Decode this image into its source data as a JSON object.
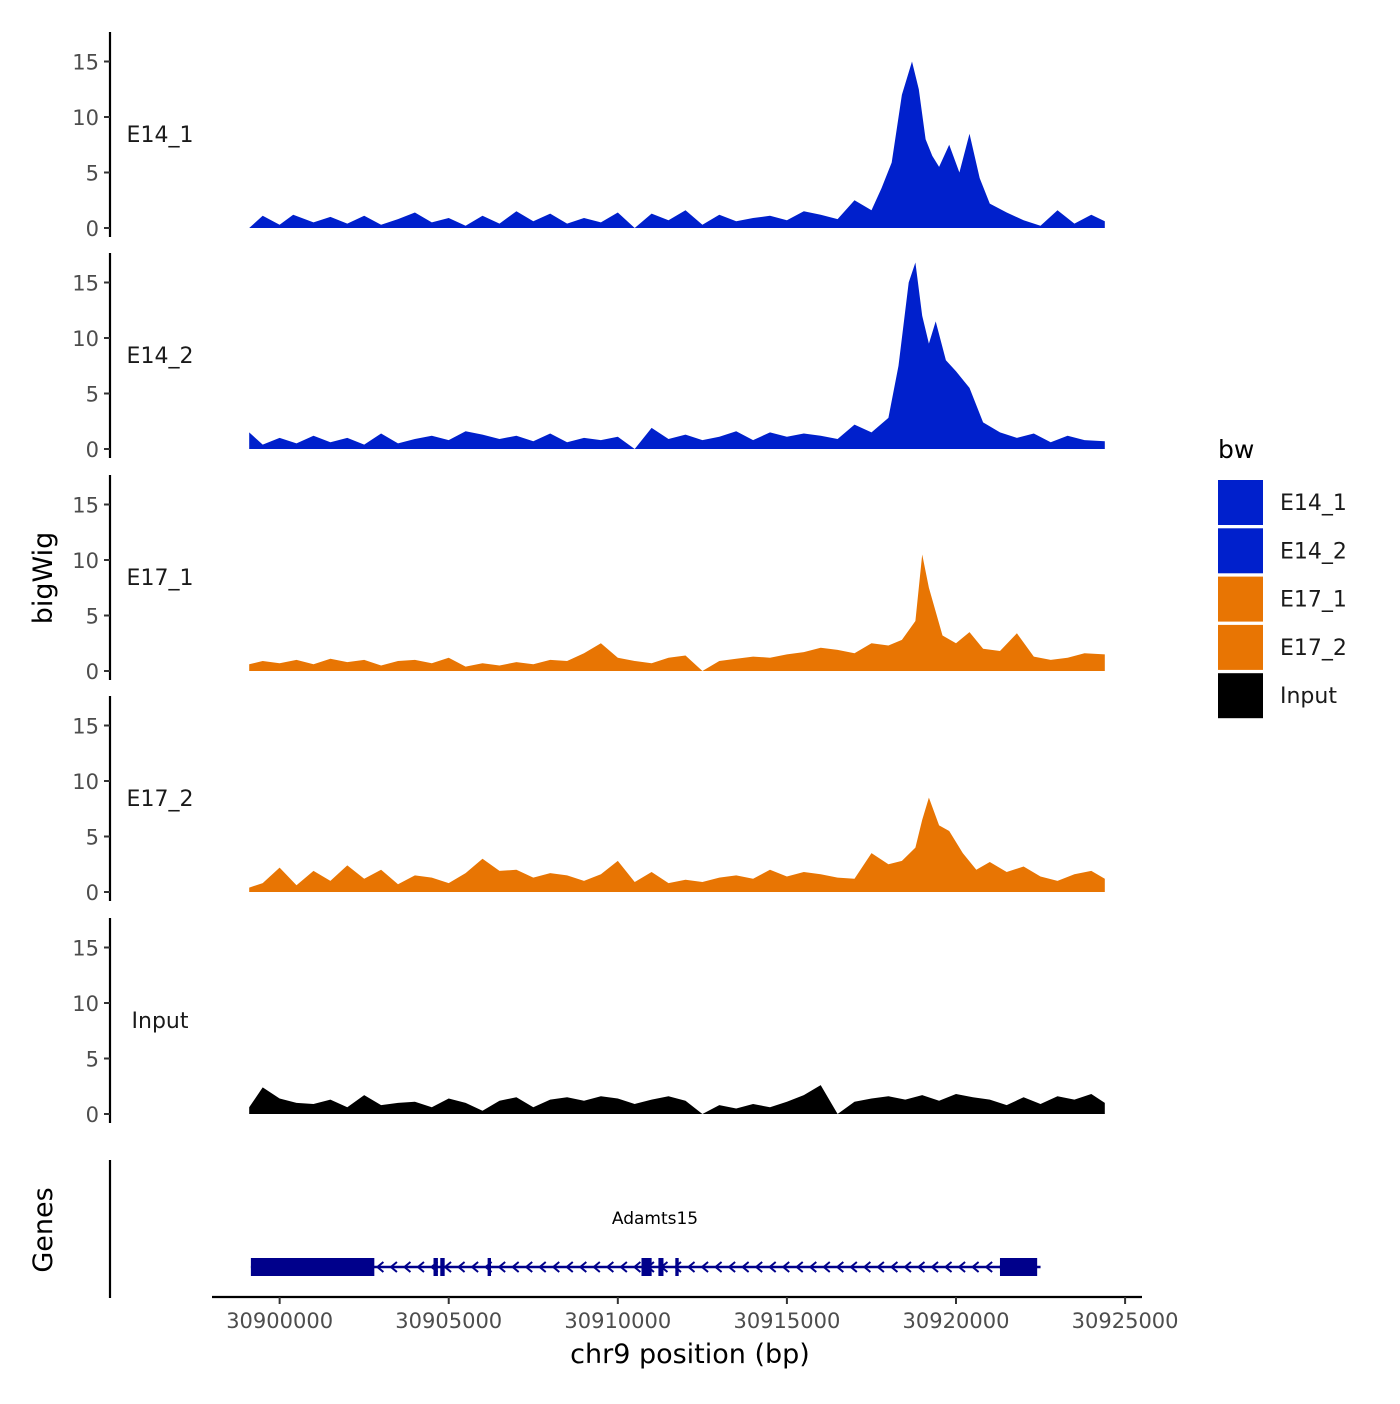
{
  "chart_data": {
    "type": "area",
    "title": "",
    "ylabel": "bigWig",
    "xlabel": "chr9 position (bp)",
    "xlim": [
      30898000,
      30925500
    ],
    "ylim": [
      0,
      17
    ],
    "yticks": [
      0,
      5,
      10,
      15
    ],
    "xticks": [
      30900000,
      30905000,
      30910000,
      30915000,
      30920000,
      30925000
    ],
    "xtick_labels": [
      "30900000",
      "30905000",
      "30910000",
      "30915000",
      "30920000",
      "30925000"
    ],
    "legend": {
      "title": "bw",
      "position": "right",
      "entries": [
        {
          "name": "E14_1",
          "color": "#0020CC"
        },
        {
          "name": "E14_2",
          "color": "#0020CC"
        },
        {
          "name": "E17_1",
          "color": "#E87503"
        },
        {
          "name": "E17_2",
          "color": "#E87503"
        },
        {
          "name": "Input",
          "color": "#000000"
        }
      ]
    },
    "series": [
      {
        "name": "E14_1",
        "color": "#0020CC",
        "x": [
          30899100,
          30899500,
          30900000,
          30900400,
          30901000,
          30901500,
          30902000,
          30902500,
          30903000,
          30903500,
          30904000,
          30904500,
          30905000,
          30905500,
          30906000,
          30906500,
          30907000,
          30907500,
          30908000,
          30908500,
          30909000,
          30909500,
          30910000,
          30910500,
          30911000,
          30911500,
          30912000,
          30912500,
          30913000,
          30913500,
          30914000,
          30914500,
          30915000,
          30915500,
          30916000,
          30916500,
          30917000,
          30917500,
          30917800,
          30918100,
          30918400,
          30918700,
          30918900,
          30919100,
          30919300,
          30919500,
          30919800,
          30920100,
          30920400,
          30920700,
          30921000,
          30921500,
          30922000,
          30922500,
          30923000,
          30923500,
          30924000,
          30924400
        ],
        "values": [
          0,
          1.1,
          0.3,
          1.2,
          0.5,
          1.0,
          0.4,
          1.1,
          0.3,
          0.8,
          1.4,
          0.5,
          0.9,
          0.2,
          1.1,
          0.4,
          1.5,
          0.6,
          1.3,
          0.4,
          0.9,
          0.5,
          1.4,
          0.0,
          1.3,
          0.7,
          1.6,
          0.3,
          1.2,
          0.6,
          0.9,
          1.1,
          0.7,
          1.5,
          1.2,
          0.8,
          2.5,
          1.6,
          3.6,
          5.9,
          12.0,
          15.0,
          12.5,
          8.0,
          6.5,
          5.5,
          7.5,
          5.0,
          8.5,
          4.5,
          2.2,
          1.4,
          0.7,
          0.2,
          1.6,
          0.4,
          1.2,
          0.6
        ]
      },
      {
        "name": "E14_2",
        "color": "#0020CC",
        "x": [
          30899100,
          30899500,
          30900000,
          30900500,
          30901000,
          30901500,
          30902000,
          30902500,
          30903000,
          30903500,
          30904000,
          30904500,
          30905000,
          30905500,
          30906000,
          30906500,
          30907000,
          30907500,
          30908000,
          30908500,
          30909000,
          30909500,
          30910000,
          30910500,
          30911000,
          30911500,
          30912000,
          30912500,
          30913000,
          30913500,
          30914000,
          30914500,
          30915000,
          30915500,
          30916000,
          30916500,
          30917000,
          30917500,
          30918000,
          30918300,
          30918600,
          30918800,
          30919000,
          30919200,
          30919400,
          30919700,
          30920000,
          30920400,
          30920800,
          30921300,
          30921800,
          30922300,
          30922800,
          30923300,
          30923800,
          30924400
        ],
        "values": [
          1.5,
          0.4,
          1.0,
          0.5,
          1.2,
          0.6,
          1.0,
          0.4,
          1.4,
          0.5,
          0.9,
          1.2,
          0.8,
          1.6,
          1.3,
          0.9,
          1.2,
          0.7,
          1.4,
          0.6,
          1.0,
          0.8,
          1.1,
          0.0,
          1.9,
          0.9,
          1.3,
          0.8,
          1.1,
          1.6,
          0.8,
          1.5,
          1.1,
          1.4,
          1.2,
          0.9,
          2.2,
          1.5,
          2.8,
          7.5,
          15.0,
          16.8,
          12.0,
          9.5,
          11.5,
          8.0,
          7.0,
          5.5,
          2.4,
          1.5,
          1.0,
          1.4,
          0.6,
          1.2,
          0.8,
          0.7
        ]
      },
      {
        "name": "E17_1",
        "color": "#E87503",
        "x": [
          30899100,
          30899500,
          30900000,
          30900500,
          30901000,
          30901500,
          30902000,
          30902500,
          30903000,
          30903500,
          30904000,
          30904500,
          30905000,
          30905500,
          30906000,
          30906500,
          30907000,
          30907500,
          30908000,
          30908500,
          30909000,
          30909500,
          30910000,
          30910500,
          30911000,
          30911500,
          30912000,
          30912500,
          30913000,
          30913500,
          30914000,
          30914500,
          30915000,
          30915500,
          30916000,
          30916500,
          30917000,
          30917500,
          30918000,
          30918400,
          30918800,
          30919000,
          30919200,
          30919600,
          30920000,
          30920400,
          30920800,
          30921300,
          30921800,
          30922300,
          30922800,
          30923300,
          30923800,
          30924400
        ],
        "values": [
          0.6,
          0.9,
          0.7,
          1.0,
          0.6,
          1.1,
          0.8,
          1.0,
          0.5,
          0.9,
          1.0,
          0.7,
          1.2,
          0.4,
          0.7,
          0.5,
          0.8,
          0.6,
          1.0,
          0.9,
          1.6,
          2.5,
          1.2,
          0.9,
          0.7,
          1.2,
          1.4,
          0.0,
          0.9,
          1.1,
          1.3,
          1.2,
          1.5,
          1.7,
          2.1,
          1.9,
          1.6,
          2.5,
          2.3,
          2.8,
          4.5,
          10.5,
          7.5,
          3.2,
          2.5,
          3.5,
          2.0,
          1.8,
          3.4,
          1.3,
          1.0,
          1.2,
          1.6,
          1.5
        ]
      },
      {
        "name": "E17_2",
        "color": "#E87503",
        "x": [
          30899100,
          30899500,
          30900000,
          30900500,
          30901000,
          30901500,
          30902000,
          30902500,
          30903000,
          30903500,
          30904000,
          30904500,
          30905000,
          30905500,
          30906000,
          30906500,
          30907000,
          30907500,
          30908000,
          30908500,
          30909000,
          30909500,
          30910000,
          30910500,
          30911000,
          30911500,
          30912000,
          30912500,
          30913000,
          30913500,
          30914000,
          30914500,
          30915000,
          30915500,
          30916000,
          30916500,
          30917000,
          30917500,
          30918000,
          30918400,
          30918800,
          30919000,
          30919200,
          30919500,
          30919800,
          30920200,
          30920600,
          30921000,
          30921500,
          30922000,
          30922500,
          30923000,
          30923500,
          30924000,
          30924400
        ],
        "values": [
          0.4,
          0.8,
          2.2,
          0.6,
          1.9,
          1.0,
          2.4,
          1.2,
          2.0,
          0.7,
          1.5,
          1.3,
          0.8,
          1.7,
          3.0,
          1.9,
          2.0,
          1.3,
          1.7,
          1.5,
          1.0,
          1.6,
          2.8,
          0.9,
          1.8,
          0.8,
          1.1,
          0.9,
          1.3,
          1.5,
          1.2,
          2.0,
          1.4,
          1.8,
          1.6,
          1.3,
          1.2,
          3.5,
          2.5,
          2.8,
          4.0,
          6.5,
          8.5,
          6.0,
          5.5,
          3.5,
          2.0,
          2.7,
          1.8,
          2.3,
          1.4,
          1.0,
          1.6,
          1.9,
          1.2
        ]
      },
      {
        "name": "Input",
        "color": "#000000",
        "x": [
          30899100,
          30899500,
          30900000,
          30900500,
          30901000,
          30901500,
          30902000,
          30902500,
          30903000,
          30903500,
          30904000,
          30904500,
          30905000,
          30905500,
          30906000,
          30906500,
          30907000,
          30907500,
          30908000,
          30908500,
          30909000,
          30909500,
          30910000,
          30910500,
          30911000,
          30911500,
          30912000,
          30912500,
          30913000,
          30913500,
          30914000,
          30914500,
          30915000,
          30915500,
          30916000,
          30916500,
          30917000,
          30917500,
          30918000,
          30918500,
          30919000,
          30919500,
          30920000,
          30920500,
          30921000,
          30921500,
          30922000,
          30922500,
          30923000,
          30923500,
          30924000,
          30924400
        ],
        "values": [
          0.6,
          2.4,
          1.4,
          1.0,
          0.9,
          1.3,
          0.6,
          1.7,
          0.8,
          1.0,
          1.1,
          0.6,
          1.4,
          1.0,
          0.3,
          1.2,
          1.5,
          0.6,
          1.3,
          1.5,
          1.2,
          1.6,
          1.4,
          0.9,
          1.3,
          1.6,
          1.2,
          0.0,
          0.8,
          0.5,
          0.9,
          0.6,
          1.1,
          1.7,
          2.6,
          0.0,
          1.1,
          1.4,
          1.6,
          1.3,
          1.7,
          1.2,
          1.8,
          1.5,
          1.3,
          0.8,
          1.5,
          0.9,
          1.6,
          1.3,
          1.8,
          1.0
        ]
      }
    ],
    "track_labels": [
      "E14_1",
      "E14_2",
      "E17_1",
      "E17_2",
      "Input"
    ],
    "genes": {
      "label": "Genes",
      "color": "#00008B",
      "items": [
        {
          "name": "Adamts15",
          "start": 30899150,
          "end": 30922500,
          "strand": "-",
          "exons": [
            [
              30899150,
              30902800
            ],
            [
              30904550,
              30904680
            ],
            [
              30904750,
              30904880
            ],
            [
              30906150,
              30906250
            ],
            [
              30910700,
              30911000
            ],
            [
              30911200,
              30911350
            ],
            [
              30911700,
              30911800
            ],
            [
              30921300,
              30922400
            ]
          ]
        }
      ]
    }
  }
}
